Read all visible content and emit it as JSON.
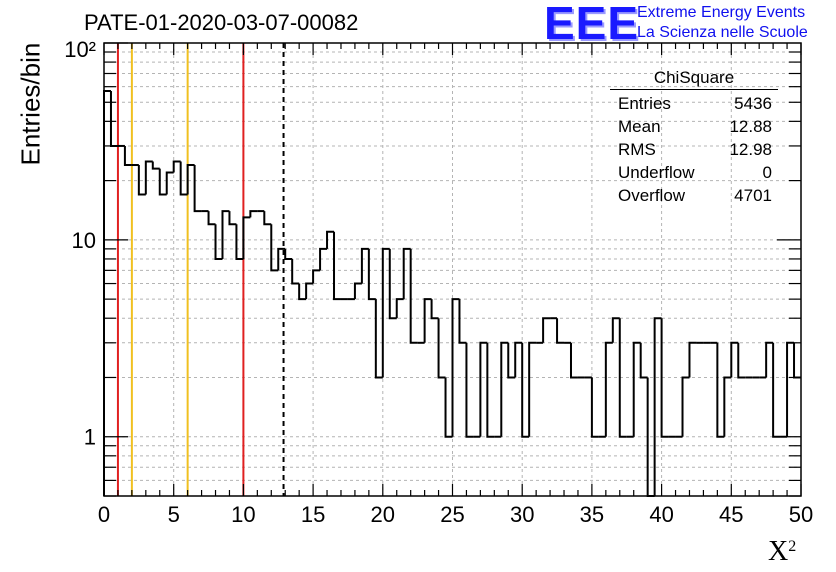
{
  "chart_data": {
    "type": "histogram",
    "title": "PATE-01-2020-03-07-00082",
    "xlabel": "X",
    "xlabel_superscript": "2",
    "ylabel": "Entries/bin",
    "xlim": [
      0,
      50
    ],
    "ylim": [
      0.5,
      100
    ],
    "y_scale": "log",
    "grid": true,
    "bin_width": 0.5,
    "x_ticks": [
      "0",
      "5",
      "10",
      "15",
      "20",
      "25",
      "30",
      "35",
      "40",
      "45",
      "50"
    ],
    "y_ticks": [
      "1",
      "10",
      "10²"
    ],
    "bin_counts": [
      57,
      30,
      30,
      24,
      24,
      17,
      25,
      23,
      17,
      22,
      25,
      17,
      24,
      14,
      14,
      12,
      8,
      14,
      12,
      8,
      13,
      14,
      14,
      12,
      7,
      9,
      8,
      6,
      5,
      6,
      7,
      9,
      11,
      5,
      5,
      5,
      6,
      9,
      5,
      2,
      9,
      4,
      5,
      9,
      3,
      3,
      5,
      4,
      2,
      1,
      5,
      3,
      1,
      1,
      3,
      1,
      1,
      3,
      2,
      3,
      1,
      3,
      3,
      4,
      4,
      3,
      3,
      2,
      2,
      2,
      1,
      1,
      3,
      4,
      1,
      1,
      3,
      2,
      0.5,
      4,
      1,
      1,
      1,
      2,
      3,
      3,
      3,
      3,
      1,
      2,
      3,
      2,
      2,
      2,
      2,
      3,
      1,
      1,
      3,
      2
    ],
    "vertical_lines": [
      {
        "x": 1,
        "color": "#e02020",
        "style": "solid"
      },
      {
        "x": 2,
        "color": "#f0c020",
        "style": "solid"
      },
      {
        "x": 6,
        "color": "#f0c020",
        "style": "solid"
      },
      {
        "x": 10,
        "color": "#e02020",
        "style": "solid"
      },
      {
        "x": 12.88,
        "color": "#000000",
        "style": "dashed"
      }
    ],
    "stats_box": {
      "title": "ChiSquare",
      "rows": [
        {
          "label": "Entries",
          "value": "5436"
        },
        {
          "label": "Mean",
          "value": "12.88"
        },
        {
          "label": "RMS",
          "value": "12.98"
        },
        {
          "label": "Underflow",
          "value": "0"
        },
        {
          "label": "Overflow",
          "value": "4701"
        }
      ]
    }
  },
  "logo": {
    "mark": "EEE",
    "line1": "Extreme Energy Events",
    "line2": "La Scienza nelle Scuole"
  },
  "colors": {
    "logo_blue": "#1a1aff",
    "grid": "#b4b4b4",
    "line_red": "#e02020",
    "line_yellow": "#f0c020"
  }
}
